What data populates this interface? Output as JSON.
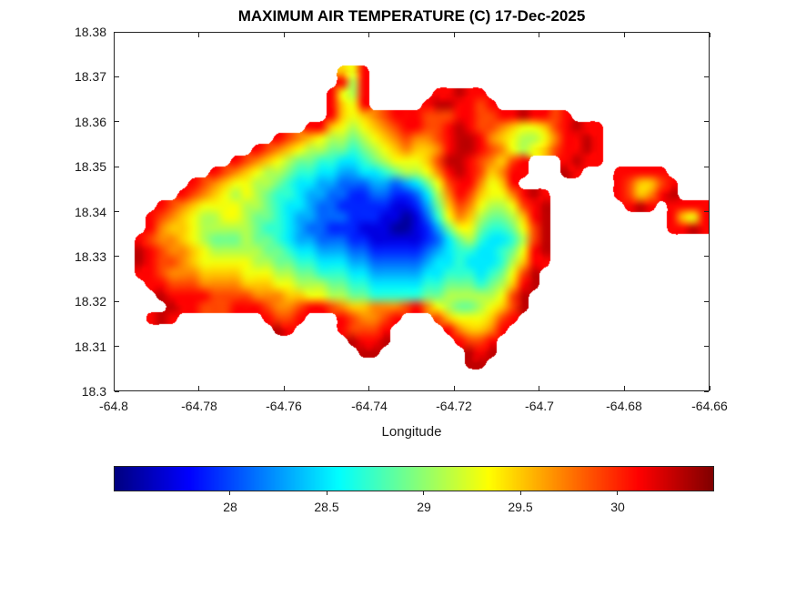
{
  "axes": {
    "x_tick_labels": [
      "-64.8",
      "-64.78",
      "-64.76",
      "-64.74",
      "-64.72",
      "-64.7",
      "-64.68",
      "-64.66"
    ],
    "y_tick_labels": [
      "18.38",
      "18.37",
      "18.36",
      "18.35",
      "18.34",
      "18.33",
      "18.32",
      "18.31",
      "18.3"
    ],
    "x_range": [
      -64.8,
      -64.66
    ],
    "y_range": [
      18.3,
      18.38
    ]
  },
  "colorbar": {
    "orientation": "horizontal",
    "colormap": "jet",
    "range": [
      27.4,
      30.5
    ],
    "tick_values": [
      28,
      28.5,
      29,
      29.5,
      30
    ],
    "tick_labels": [
      "28",
      "28.5",
      "29",
      "29.5",
      "30"
    ]
  },
  "chart_data": {
    "type": "heatmap",
    "title": "MAXIMUM AIR TEMPERATURE (C) 17-Dec-2025",
    "xlabel": "Longitude",
    "units": "C",
    "colormap": "jet",
    "value_range": [
      27.4,
      30.5
    ],
    "colorbar_tick_values": [
      28,
      28.5,
      29,
      29.5,
      30
    ],
    "x_range": [
      -64.8,
      -64.66
    ],
    "y_range": [
      18.3,
      18.38
    ],
    "grid": {
      "cols": 56,
      "rows": 32,
      "x_min": -64.8,
      "x_max": -64.66,
      "y_min": 18.3,
      "y_max": 18.38,
      "x_step": 0.0025,
      "y_step": 0.0025,
      "no_data_char": ".",
      "level_chars": "0123456789abcdef",
      "level_values": [
        27.5,
        27.7,
        27.9,
        28.1,
        28.3,
        28.5,
        28.7,
        28.9,
        29.1,
        29.3,
        29.5,
        29.7,
        29.9,
        30.1,
        30.3,
        30.5
      ],
      "cells": [
        "........................................................",
        "........................................................",
        "........................................................",
        ".....................a9d................................",
        ".....................d8d................................",
        "....................d98d......ddedd.....................",
        "....................da9d.....deeddcd....................",
        "....................da9abcdddcccddccddeddcd.............",
        "..................dda989abcddccdedccba99acdedd..........",
        "...............dcba988789abcbbcdeedba9889bdded..........",
        ".............dcba988776789abaabdeedcb989acdded..........",
        "...........dcba98776655678999aceedcbacd...dedd..........",
        ".........dcba98876655445567889bdedcabdd...ed...ddddd....",
        ".......dcba99887655443334434579cddb9ad.........dcaacd...",
        "......dcba989876654433223322358bdca99bded......dcabde...",
        "....dcba99998876554332222211247acb9889cde.......ded.dddd",
        "...dcba9889987765443332221101369ba8778ade...........da9d",
        "...dbaa98888876654332221110012479976679ce...........dded",
        "..dcbba98777877654433322111112357865568ce...............",
        "..edcbba9888887765544433222223456655679de...............",
        "..edccba999998877665554433333455655568add...............",
        "..ddcbbbaaaa99988776665544444556665679ce................",
        "...ddcccbbbbaaa9988877665555566777678ade................",
        "....eddddccccbbbaa9988776666677888889ce.................",
        ".....eddcccdddcbbcddcbaabbbcdb987789ace.................",
        "...ded........dccd...dcbbcd...ca999acd..................",
        "...............ed....dcccd.....dbaabd...................",
        "......................edde......dccd....................",
        ".......................ee........ede....................",
        ".................................ee.....................",
        "........................................................",
        "........................................................"
      ]
    }
  }
}
